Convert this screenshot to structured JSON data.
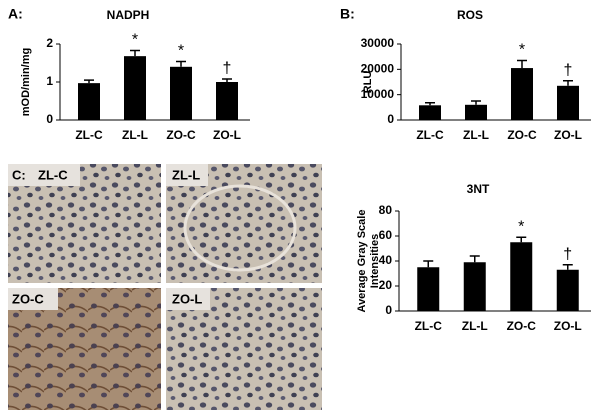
{
  "chart_data": [
    {
      "type": "bar",
      "panel_label": "A:",
      "title": "NADPH",
      "ylabel": [
        "mOD/min/mg"
      ],
      "categories": [
        "ZL-C",
        "ZL-L",
        "ZO-C",
        "ZO-L"
      ],
      "values": [
        0.97,
        1.68,
        1.4,
        1.0
      ],
      "errors": [
        0.08,
        0.15,
        0.14,
        0.08
      ],
      "annotations": [
        null,
        "*",
        "*",
        "†"
      ],
      "color": "#000000",
      "ylim": [
        0,
        2
      ],
      "yticks": [
        0,
        1,
        2
      ]
    },
    {
      "type": "bar",
      "panel_label": "B:",
      "title": "ROS",
      "ylabel": [
        "RLU"
      ],
      "categories": [
        "ZL-C",
        "ZL-L",
        "ZO-C",
        "ZO-L"
      ],
      "values": [
        5800,
        6000,
        20500,
        13500
      ],
      "errors": [
        1000,
        1500,
        3000,
        2000
      ],
      "annotations": [
        null,
        null,
        "*",
        "†"
      ],
      "color": "#000000",
      "ylim": [
        0,
        30000
      ],
      "yticks": [
        0,
        10000,
        20000,
        30000
      ]
    },
    {
      "type": "bar",
      "title": "3NT",
      "ylabel": [
        "Average Gray Scale",
        "Intensities"
      ],
      "categories": [
        "ZL-C",
        "ZL-L",
        "ZO-C",
        "ZO-L"
      ],
      "values": [
        35,
        39,
        55,
        33
      ],
      "errors": [
        5,
        5,
        4,
        4
      ],
      "annotations": [
        null,
        null,
        "*",
        "†"
      ],
      "color": "#000000",
      "ylim": [
        0,
        80
      ],
      "yticks": [
        0,
        20,
        40,
        60,
        80
      ]
    }
  ],
  "micrographs": {
    "panel_label": "C:",
    "labels": [
      "ZL-C",
      "ZL-L",
      "ZO-C",
      "ZO-L"
    ]
  }
}
